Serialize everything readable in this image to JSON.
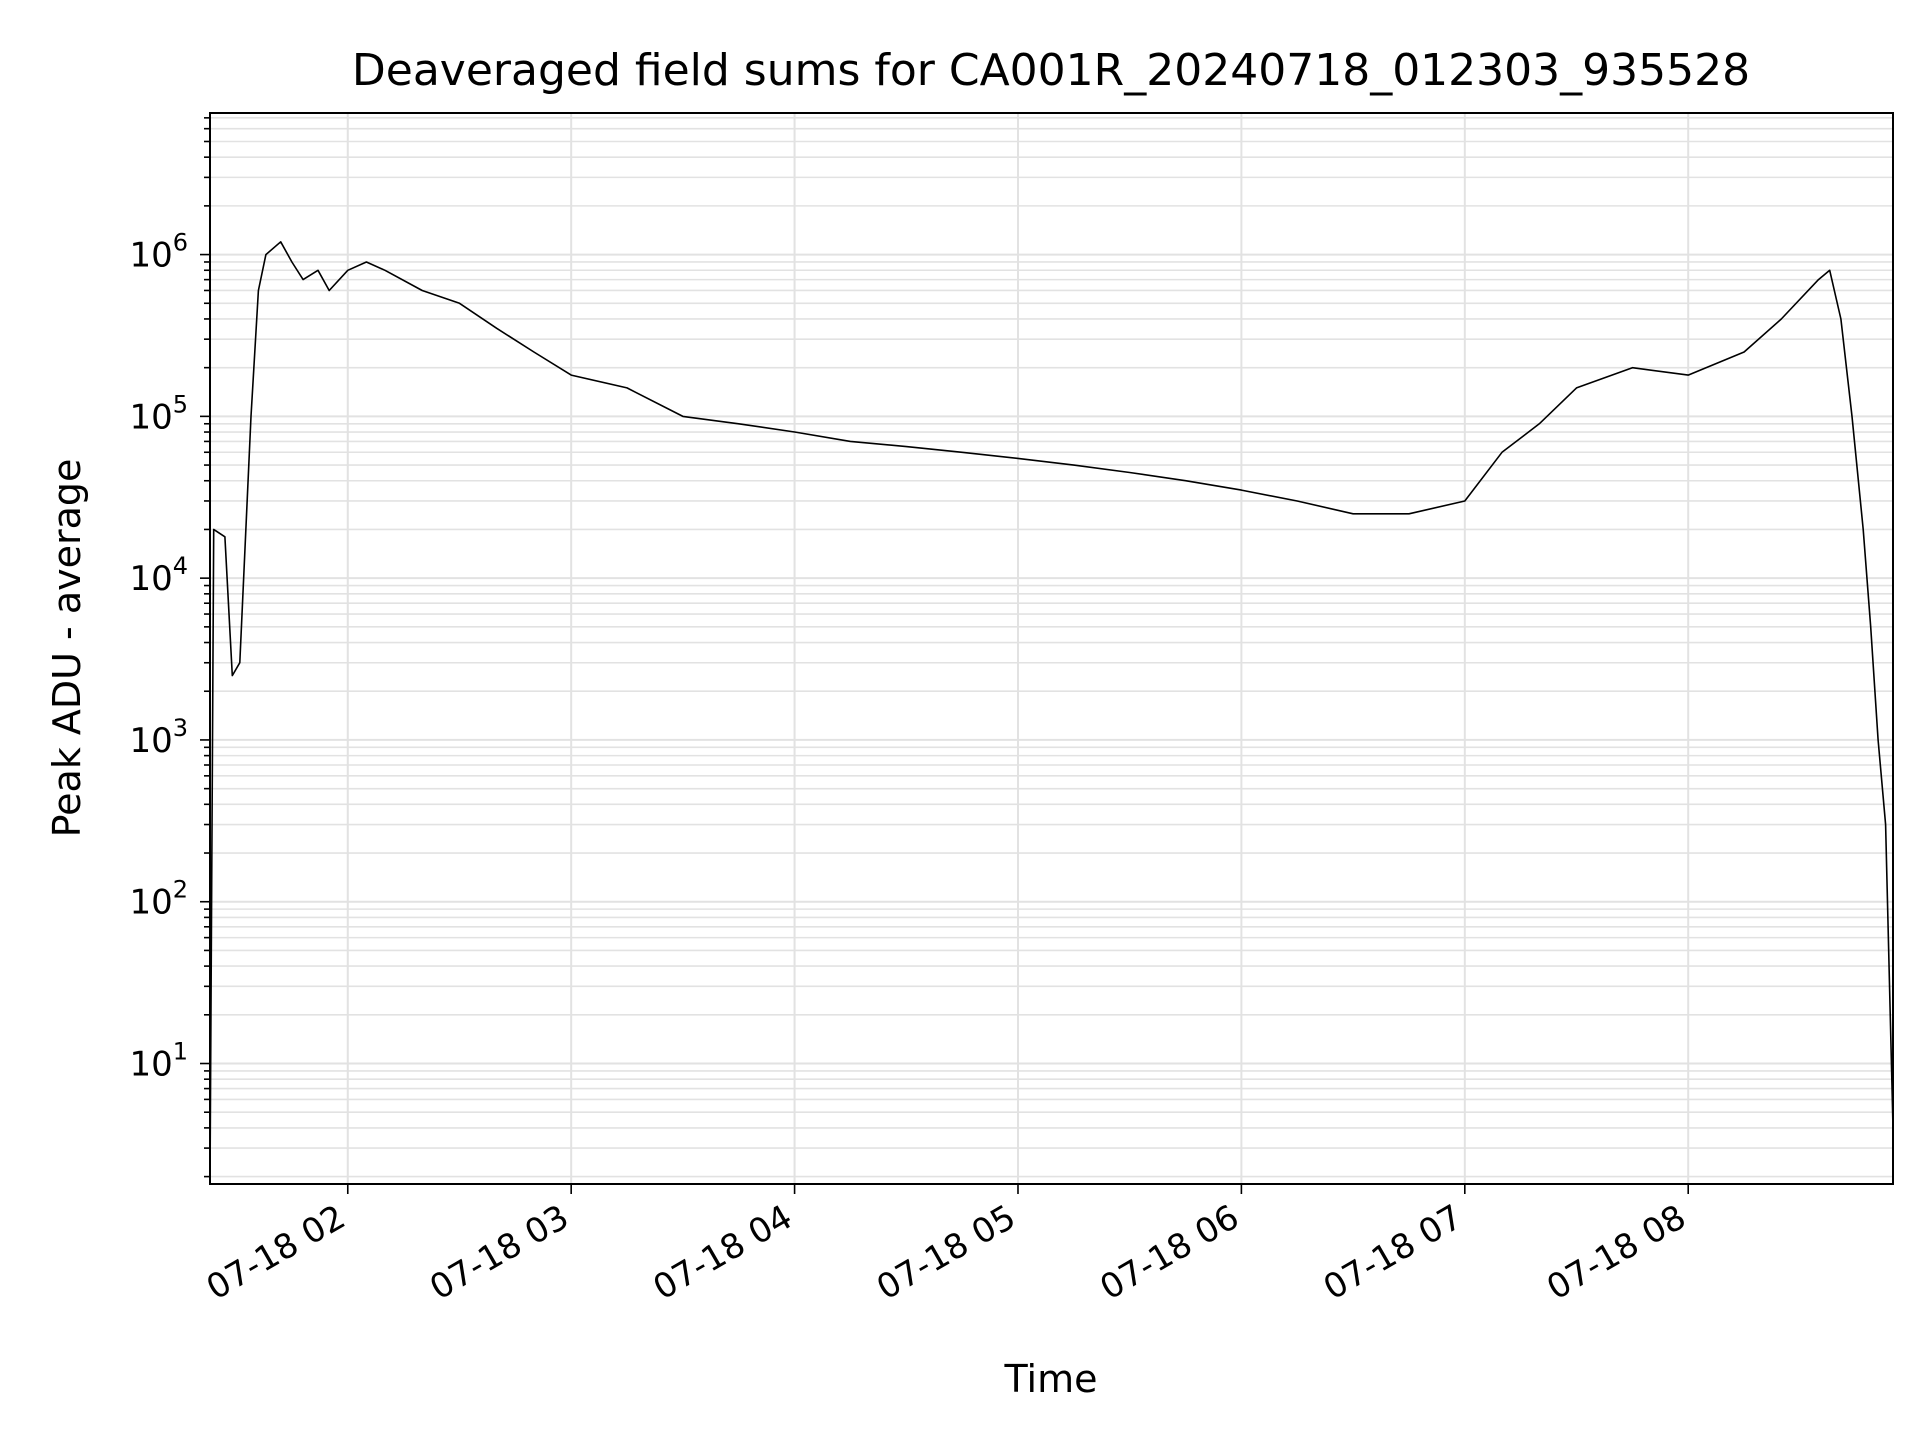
{
  "chart_data": {
    "type": "line",
    "title": "Deaveraged field sums for CA001R_20240718_012303_935528",
    "xlabel": "Time",
    "ylabel": "Peak ADU - average",
    "y_scale": "log",
    "ylim": [
      1.8,
      7500000
    ],
    "xlim": [
      "2024-07-18 01:23",
      "2024-07-18 08:55"
    ],
    "x_ticks": [
      "07-18 02",
      "07-18 03",
      "07-18 04",
      "07-18 05",
      "07-18 06",
      "07-18 07",
      "07-18 08"
    ],
    "y_ticks": [
      {
        "base": "10",
        "exp": "1"
      },
      {
        "base": "10",
        "exp": "2"
      },
      {
        "base": "10",
        "exp": "3"
      },
      {
        "base": "10",
        "exp": "4"
      },
      {
        "base": "10",
        "exp": "5"
      },
      {
        "base": "10",
        "exp": "6"
      }
    ],
    "grid": "both",
    "line_color": "#000000",
    "series": [
      {
        "x": [
          "2024-07-18 01:23",
          "2024-07-18 01:24",
          "2024-07-18 01:27",
          "2024-07-18 01:29",
          "2024-07-18 01:31",
          "2024-07-18 01:34",
          "2024-07-18 01:36",
          "2024-07-18 01:38",
          "2024-07-18 01:42",
          "2024-07-18 01:45",
          "2024-07-18 01:48",
          "2024-07-18 01:52",
          "2024-07-18 01:55",
          "2024-07-18 02:00",
          "2024-07-18 02:05",
          "2024-07-18 02:10",
          "2024-07-18 02:20",
          "2024-07-18 02:30",
          "2024-07-18 02:40",
          "2024-07-18 02:50",
          "2024-07-18 03:00",
          "2024-07-18 03:15",
          "2024-07-18 03:30",
          "2024-07-18 03:45",
          "2024-07-18 04:00",
          "2024-07-18 04:15",
          "2024-07-18 04:30",
          "2024-07-18 04:45",
          "2024-07-18 05:00",
          "2024-07-18 05:15",
          "2024-07-18 05:30",
          "2024-07-18 05:45",
          "2024-07-18 06:00",
          "2024-07-18 06:15",
          "2024-07-18 06:30",
          "2024-07-18 06:45",
          "2024-07-18 07:00",
          "2024-07-18 07:10",
          "2024-07-18 07:20",
          "2024-07-18 07:30",
          "2024-07-18 07:45",
          "2024-07-18 08:00",
          "2024-07-18 08:15",
          "2024-07-18 08:25",
          "2024-07-18 08:35",
          "2024-07-18 08:38",
          "2024-07-18 08:41",
          "2024-07-18 08:44",
          "2024-07-18 08:47",
          "2024-07-18 08:49",
          "2024-07-18 08:51",
          "2024-07-18 08:53",
          "2024-07-18 08:55"
        ],
        "y": [
          1.8,
          20000,
          18000,
          2500,
          3000,
          100000,
          600000,
          1000000,
          1200000,
          900000,
          700000,
          800000,
          600000,
          800000,
          900000,
          800000,
          600000,
          500000,
          350000,
          250000,
          180000,
          150000,
          100000,
          90000,
          80000,
          70000,
          65000,
          60000,
          55000,
          50000,
          45000,
          40000,
          35000,
          30000,
          25000,
          25000,
          30000,
          60000,
          90000,
          150000,
          200000,
          180000,
          250000,
          400000,
          700000,
          800000,
          400000,
          100000,
          20000,
          5000,
          1000,
          300,
          4
        ]
      }
    ]
  }
}
